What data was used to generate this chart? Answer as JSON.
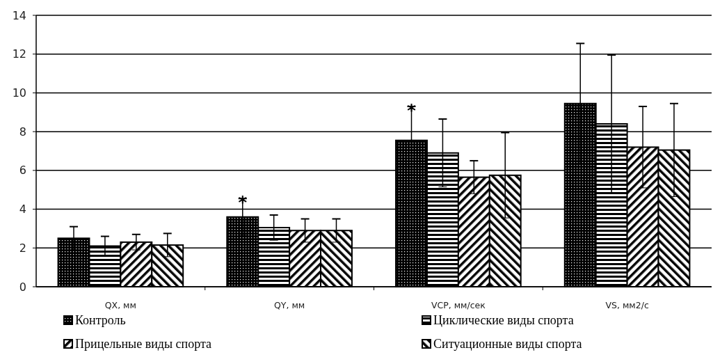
{
  "chart_data": {
    "type": "bar",
    "categories": [
      "QX, мм",
      "QY, мм",
      "VCP, мм/сек",
      "VS, мм2/с"
    ],
    "series": [
      {
        "name": "Контроль",
        "color": "#000000",
        "values": [
          2.5,
          3.6,
          7.55,
          9.45
        ],
        "errors": [
          0.6,
          0.95,
          1.75,
          3.1
        ]
      },
      {
        "name": "Циклические виды спорта",
        "color": "#000000",
        "values": [
          2.1,
          3.05,
          6.9,
          8.4
        ],
        "errors": [
          0.5,
          0.65,
          1.75,
          3.55
        ]
      },
      {
        "name": "Прицельные виды спорта",
        "color": "#000000",
        "values": [
          2.3,
          2.9,
          5.65,
          7.2
        ],
        "errors": [
          0.4,
          0.6,
          0.85,
          2.1
        ]
      },
      {
        "name": "Ситуационные виды спорта",
        "color": "#000000",
        "values": [
          2.15,
          2.9,
          5.75,
          7.05
        ],
        "errors": [
          0.6,
          0.6,
          2.2,
          2.4
        ]
      }
    ],
    "ylim": [
      0,
      14
    ],
    "yticks": [
      0,
      2,
      4,
      6,
      8,
      10,
      12,
      14
    ],
    "grid": "y",
    "legend": "bottom",
    "annotations": [
      "*",
      "*"
    ]
  }
}
